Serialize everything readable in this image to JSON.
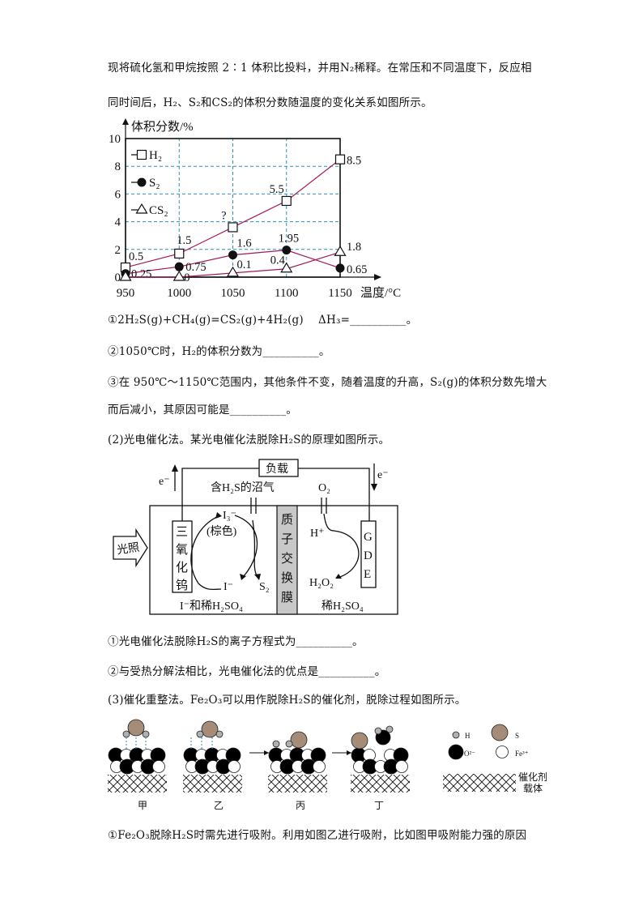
{
  "intro": {
    "line1": "现将硫化氢和甲烷按照 2∶1 体积比投料，并用N₂稀释。在常压和不同温度下，反应相",
    "line2": "同时间后，H₂、S₂和CS₂的体积分数随温度的变化关系如图所示。"
  },
  "chart_data": {
    "type": "line",
    "ylabel": "体积分数/%",
    "xlabel": "温度/°C",
    "x": [
      950,
      1000,
      1050,
      1100,
      1150
    ],
    "xlim": [
      950,
      1150
    ],
    "ylim": [
      0,
      10
    ],
    "xticks": [
      "950",
      "1000",
      "1050",
      "1100",
      "1150"
    ],
    "yticks": [
      "0",
      "2",
      "4",
      "6",
      "8",
      "10"
    ],
    "grid": "dashed",
    "grid_color": "#2b8fbf",
    "line_color": "#a3195b",
    "legend_position": "top-left",
    "series": [
      {
        "name": "H₂",
        "marker": "open-square",
        "values": [
          0.5,
          1.5,
          3.6,
          5.5,
          8.5
        ],
        "labels": [
          "0.5",
          "1.5",
          "?",
          "5.5",
          "8.5"
        ]
      },
      {
        "name": "S₂",
        "marker": "filled-circle",
        "values": [
          0.25,
          0.75,
          1.6,
          1.95,
          0.65
        ],
        "labels": [
          "0.25",
          "0.75",
          "1.6",
          "1.95",
          "0.65"
        ]
      },
      {
        "name": "CS₂",
        "marker": "open-triangle",
        "values": [
          0,
          0,
          0.1,
          0.4,
          1.8
        ],
        "labels": [
          "",
          "0",
          "0.1",
          "0.4",
          "1.8"
        ]
      }
    ]
  },
  "q1": {
    "a": "①2H₂S(g)+CH₄(g)=CS₂(g)+4H₂(g)　 ΔH₃=__________。",
    "b": "②1050℃时，H₂的体积分数为__________。",
    "c1": "③在 950℃～1150℃范围内，其他条件不变，随着温度的升高，S₂(g)的体积分数先增大",
    "c2": "而后减小，其原因可能是__________。"
  },
  "q2": {
    "title": "(2)光电催化法。某光电催化法脱除H₂S的原理如图所示。",
    "diagram": {
      "load": "负载",
      "electron_left": "e⁻",
      "electron_right": "e⁻",
      "gas_in": "含H₂S的沼气",
      "o2": "O₂",
      "light": "光照",
      "electrode_left": [
        "三",
        "氧",
        "化",
        "钨"
      ],
      "i3": "I₃⁻",
      "i3_color": "(棕色)",
      "i_minus": "I⁻",
      "s2": "S₂",
      "membrane": [
        "质",
        "子",
        "交",
        "换",
        "膜"
      ],
      "h_plus": "H⁺",
      "h2o2": "H₂O₂",
      "gde": [
        "G",
        "D",
        "E"
      ],
      "left_solution": "I⁻和稀H₂SO₄",
      "right_solution": "稀H₂SO₄"
    },
    "a": "①光电催化法脱除H₂S的离子方程式为__________。",
    "b": "②与受热分解法相比，光电催化法的优点是__________。"
  },
  "q3": {
    "title": "(3)催化重整法。Fe₂O₃可以用作脱除H₂S的催化剂，脱除过程如图所示。",
    "stages": [
      "甲",
      "乙",
      "丙",
      "丁"
    ],
    "legend": {
      "h": "H",
      "s": "S",
      "o": "O²⁻",
      "fe": "Fe³⁺",
      "support1": "催化剂",
      "support2": "载体"
    },
    "colors": {
      "s": "#a58c78",
      "h": "#b0b0b0",
      "o": "#000000",
      "fe": "#ffffff"
    },
    "a": "①Fe₂O₃脱除H₂S时需先进行吸附。利用如图乙进行吸附，比如图甲吸附能力强的原因"
  }
}
